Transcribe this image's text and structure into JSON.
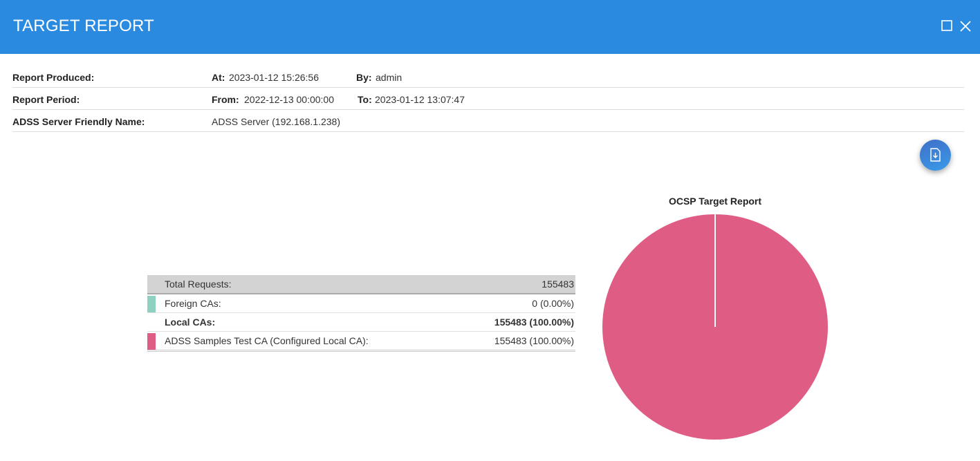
{
  "window": {
    "title": "TARGET REPORT",
    "maximize_icon": "maximize-icon",
    "close_icon": "close-icon"
  },
  "report": {
    "produced_label": "Report Produced:",
    "at_label": "At:",
    "at_value": "2023-01-12 15:26:56",
    "by_label": "By:",
    "by_value": "admin",
    "period_label": "Report Period:",
    "from_label": "From:",
    "from_value": "2022-12-13 00:00:00",
    "to_label": "To:",
    "to_value": "2023-01-12 13:07:47",
    "server_label": "ADSS Server Friendly Name:",
    "server_value": "ADSS Server (192.168.1.238)"
  },
  "download_button": {
    "icon": "file-download-icon"
  },
  "stats": {
    "total": {
      "label": "Total Requests:",
      "value": "155483"
    },
    "rows": [
      {
        "label": "Foreign CAs:",
        "value": "0 (0.00%)",
        "color": "#8fd1c1"
      },
      {
        "label": "Local CAs:",
        "value": "155483 (100.00%)"
      },
      {
        "label": "ADSS Samples Test CA (Configured Local CA):",
        "value": "155483 (100.00%)",
        "color": "#df5d84"
      }
    ]
  },
  "chart_data": {
    "type": "pie",
    "title": "OCSP Target Report",
    "categories": [
      "Foreign CAs",
      "ADSS Samples Test CA (Configured Local CA)"
    ],
    "values": [
      0,
      155483
    ],
    "colors": [
      "#8fd1c1",
      "#df5d84"
    ]
  }
}
